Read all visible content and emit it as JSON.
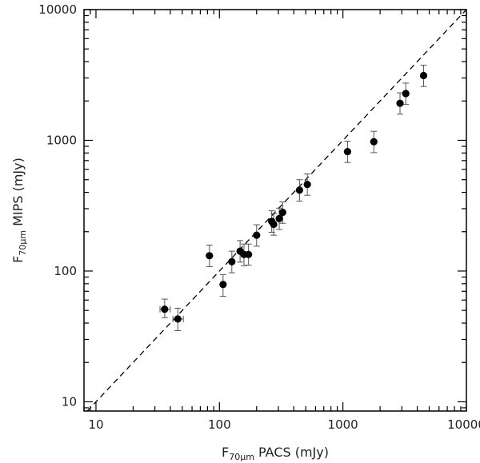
{
  "chart_data": {
    "type": "scatter",
    "xscale": "log",
    "yscale": "log",
    "xlim": [
      8,
      10000
    ],
    "ylim": [
      8.5,
      10000
    ],
    "x_ticks": [
      10,
      100,
      1000,
      10000
    ],
    "x_tick_labels": [
      "10",
      "100",
      "1000",
      "10000"
    ],
    "y_ticks": [
      10,
      100,
      1000,
      10000
    ],
    "y_tick_labels": [
      "10",
      "100",
      "1000",
      "10000"
    ],
    "xlabel": {
      "main": "F",
      "sub": "70μm",
      "rest": " PACS (mJy)"
    },
    "ylabel": {
      "main": "F",
      "sub": "70μm",
      "rest": " MIPS (mJy)"
    },
    "reference_line": {
      "style": "dashed",
      "relation": "y = x"
    },
    "points": [
      {
        "x": 36,
        "y": 51,
        "y_lo": 44,
        "y_hi": 61,
        "x_lo": 33,
        "x_hi": 40
      },
      {
        "x": 46,
        "y": 43,
        "y_lo": 35,
        "y_hi": 52,
        "x_lo": 42,
        "x_hi": 51
      },
      {
        "x": 83,
        "y": 131,
        "y_lo": 108,
        "y_hi": 158
      },
      {
        "x": 107,
        "y": 79,
        "y_lo": 64,
        "y_hi": 94
      },
      {
        "x": 126,
        "y": 118,
        "y_lo": 97,
        "y_hi": 142
      },
      {
        "x": 147,
        "y": 142,
        "y_lo": 117,
        "y_hi": 171
      },
      {
        "x": 158,
        "y": 134,
        "y_lo": 110,
        "y_hi": 161
      },
      {
        "x": 172,
        "y": 134,
        "y_lo": 111,
        "y_hi": 161
      },
      {
        "x": 200,
        "y": 188,
        "y_lo": 155,
        "y_hi": 226
      },
      {
        "x": 265,
        "y": 240,
        "y_lo": 198,
        "y_hi": 289
      },
      {
        "x": 275,
        "y": 228,
        "y_lo": 188,
        "y_hi": 274
      },
      {
        "x": 305,
        "y": 252,
        "y_lo": 208,
        "y_hi": 303
      },
      {
        "x": 325,
        "y": 281,
        "y_lo": 232,
        "y_hi": 338
      },
      {
        "x": 445,
        "y": 416,
        "y_lo": 343,
        "y_hi": 500
      },
      {
        "x": 515,
        "y": 460,
        "y_lo": 380,
        "y_hi": 553
      },
      {
        "x": 1090,
        "y": 820,
        "y_lo": 677,
        "y_hi": 985
      },
      {
        "x": 1780,
        "y": 975,
        "y_lo": 805,
        "y_hi": 1172
      },
      {
        "x": 2900,
        "y": 1920,
        "y_lo": 1585,
        "y_hi": 2310
      },
      {
        "x": 3230,
        "y": 2280,
        "y_lo": 1880,
        "y_hi": 2740
      },
      {
        "x": 4500,
        "y": 3130,
        "y_lo": 2580,
        "y_hi": 3760
      }
    ]
  }
}
